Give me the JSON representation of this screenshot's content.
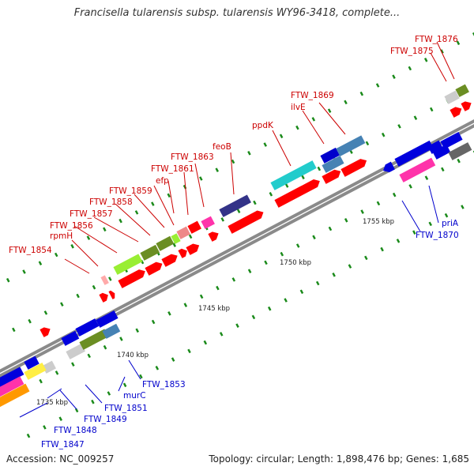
{
  "title": "Francisella tularensis subsp. tularensis WY96-3418, complete...",
  "footer": {
    "accession": "Accession: NC_009257",
    "summary": "Topology: circular; Length: 1,898,476 bp; Genes: 1,685"
  },
  "colors": {
    "forward_label": "#cc0000",
    "reverse_label": "#0000cc",
    "backbone": "#888888",
    "tick": "#1a8a1a"
  },
  "scale_labels": [
    {
      "text": "1735 kbp"
    },
    {
      "text": "1740 kbp"
    },
    {
      "text": "1745 kbp"
    },
    {
      "text": "1750 kbp"
    },
    {
      "text": "1755 kbp"
    }
  ],
  "gene_labels_top": [
    {
      "text": "FTW_1854"
    },
    {
      "text": "rpmH"
    },
    {
      "text": "FTW_1856"
    },
    {
      "text": "FTW_1857"
    },
    {
      "text": "FTW_1858"
    },
    {
      "text": "FTW_1859"
    },
    {
      "text": "FTW_1861"
    },
    {
      "text": "efp"
    },
    {
      "text": "FTW_1863"
    },
    {
      "text": "feoB"
    },
    {
      "text": "ppdK"
    },
    {
      "text": "ilvE"
    },
    {
      "text": "FTW_1869"
    },
    {
      "text": "FTW_1875"
    },
    {
      "text": "FTW_1876"
    }
  ],
  "gene_labels_bottom": [
    {
      "text": "FTW_1847"
    },
    {
      "text": "FTW_1848"
    },
    {
      "text": "FTW_1849"
    },
    {
      "text": "FTW_1851"
    },
    {
      "text": "murC"
    },
    {
      "text": "FTW_1853"
    },
    {
      "text": "FTW_1870"
    },
    {
      "text": "priA"
    }
  ]
}
